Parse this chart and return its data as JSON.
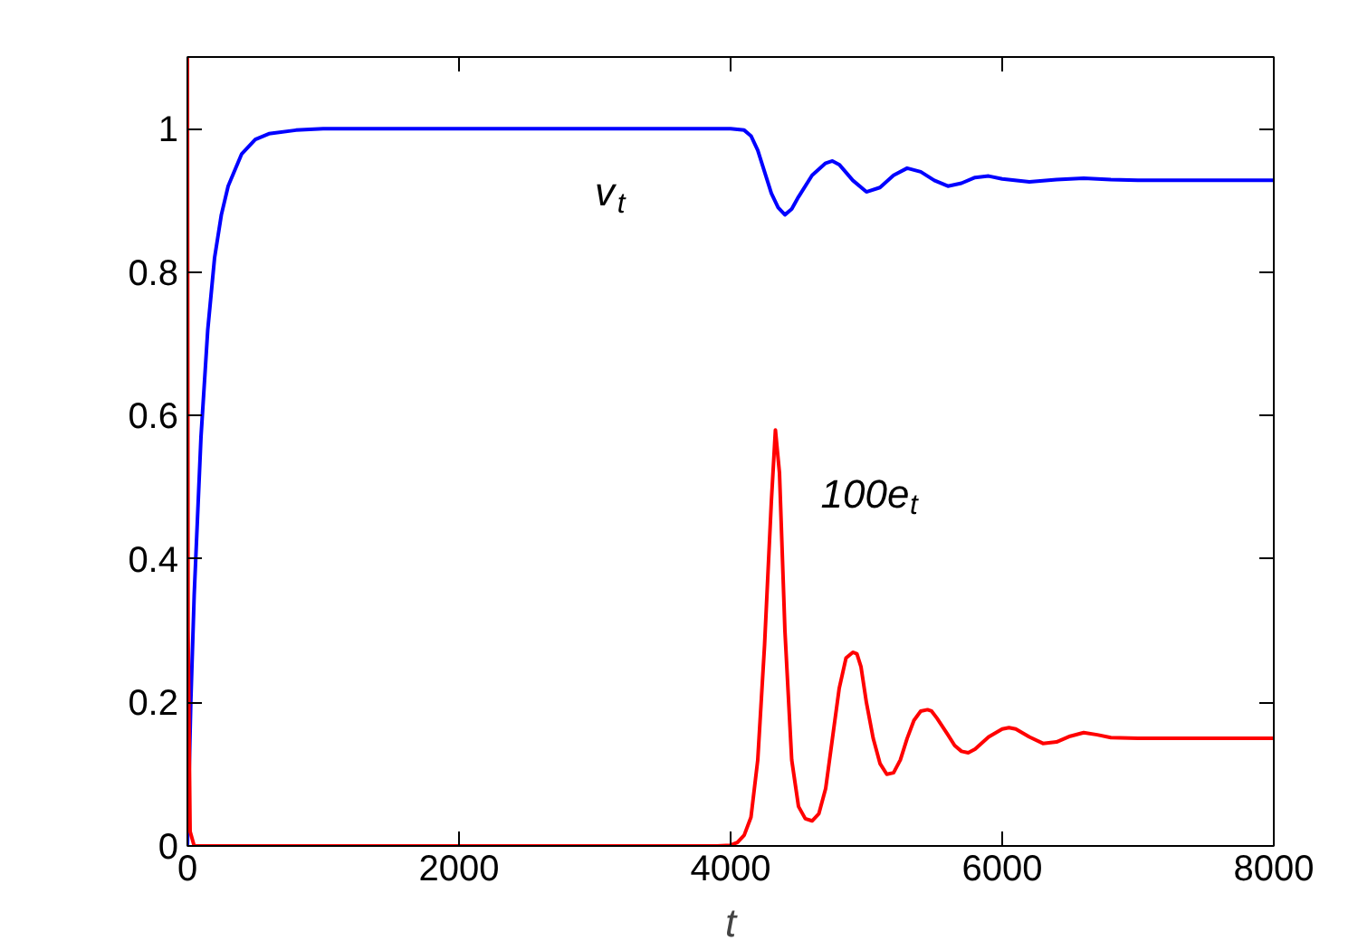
{
  "chart_data": {
    "type": "line",
    "xlabel": "t",
    "xlim": [
      0,
      8000
    ],
    "ylim": [
      0,
      1.1
    ],
    "xticks": [
      0,
      2000,
      4000,
      6000,
      8000
    ],
    "yticks": [
      0,
      0.2,
      0.4,
      0.6,
      0.8,
      1
    ],
    "grid": false,
    "series": [
      {
        "name": "v$_{t}$",
        "color": "#0000ff",
        "x": [
          0,
          25,
          50,
          100,
          150,
          200,
          250,
          300,
          400,
          500,
          600,
          800,
          1000,
          1500,
          2000,
          3000,
          4000,
          4100,
          4150,
          4200,
          4250,
          4300,
          4350,
          4400,
          4450,
          4500,
          4600,
          4700,
          4750,
          4800,
          4900,
          5000,
          5100,
          5200,
          5300,
          5400,
          5500,
          5600,
          5700,
          5800,
          5900,
          6000,
          6200,
          6400,
          6600,
          6800,
          7000,
          7500,
          8000
        ],
        "values": [
          0,
          0.2,
          0.35,
          0.57,
          0.72,
          0.82,
          0.88,
          0.92,
          0.965,
          0.985,
          0.993,
          0.998,
          1,
          1,
          1,
          1,
          1,
          0.998,
          0.99,
          0.97,
          0.94,
          0.91,
          0.89,
          0.88,
          0.888,
          0.905,
          0.935,
          0.952,
          0.955,
          0.95,
          0.928,
          0.912,
          0.918,
          0.935,
          0.945,
          0.94,
          0.928,
          0.92,
          0.924,
          0.932,
          0.934,
          0.93,
          0.926,
          0.929,
          0.931,
          0.929,
          0.928,
          0.928,
          0.928
        ]
      },
      {
        "name": "100e$_{t}$",
        "color": "#ff0000",
        "x": [
          0,
          5,
          20,
          50,
          1000,
          2000,
          3000,
          3900,
          4000,
          4050,
          4100,
          4150,
          4200,
          4250,
          4300,
          4330,
          4360,
          4400,
          4450,
          4500,
          4550,
          4600,
          4650,
          4700,
          4750,
          4800,
          4850,
          4900,
          4930,
          4960,
          5000,
          5050,
          5100,
          5150,
          5200,
          5250,
          5300,
          5350,
          5400,
          5450,
          5480,
          5520,
          5600,
          5650,
          5700,
          5750,
          5800,
          5900,
          6000,
          6050,
          6100,
          6200,
          6300,
          6400,
          6500,
          6600,
          6700,
          6800,
          7000,
          7500,
          8000
        ],
        "values": [
          1.1,
          0.3,
          0.02,
          0,
          0,
          0,
          0,
          0,
          0.001,
          0.005,
          0.015,
          0.04,
          0.12,
          0.28,
          0.48,
          0.58,
          0.52,
          0.3,
          0.12,
          0.055,
          0.038,
          0.035,
          0.045,
          0.08,
          0.15,
          0.22,
          0.262,
          0.27,
          0.268,
          0.25,
          0.2,
          0.15,
          0.115,
          0.1,
          0.102,
          0.12,
          0.15,
          0.175,
          0.188,
          0.19,
          0.188,
          0.178,
          0.155,
          0.14,
          0.132,
          0.13,
          0.135,
          0.152,
          0.163,
          0.165,
          0.163,
          0.152,
          0.143,
          0.145,
          0.153,
          0.158,
          0.155,
          0.151,
          0.15,
          0.15,
          0.15
        ]
      }
    ]
  }
}
